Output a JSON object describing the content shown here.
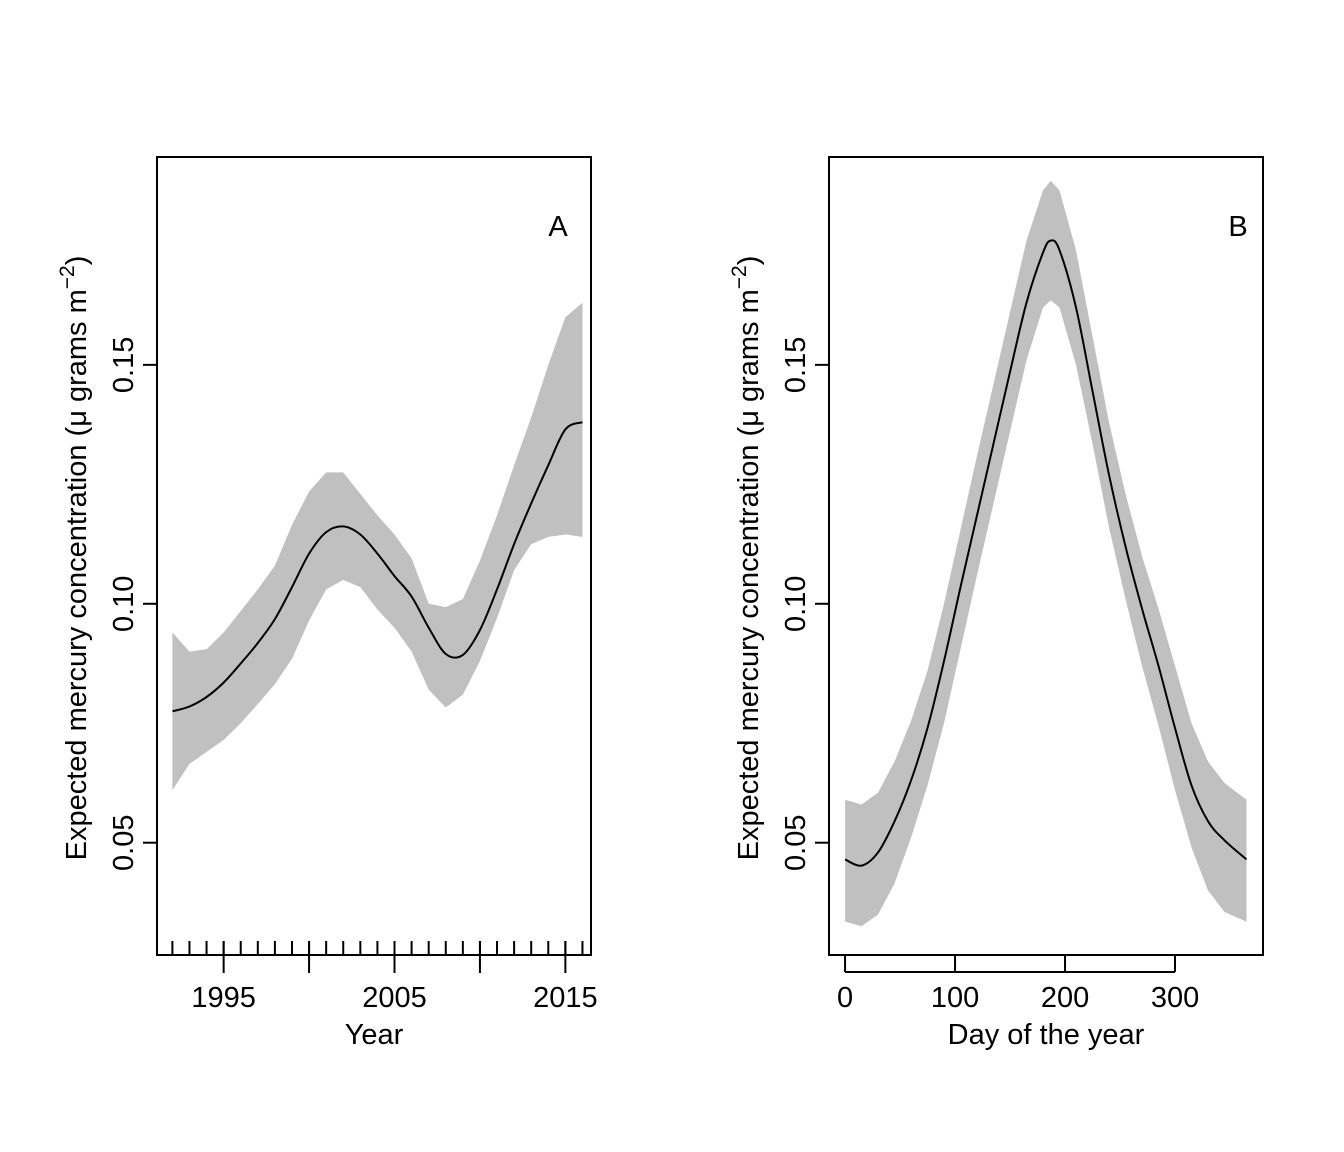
{
  "chart_data": [
    {
      "type": "line",
      "panel_label": "A",
      "xlabel": "Year",
      "ylabel": "Expected mercury concentration (μ grams m⁻²)",
      "ylabel_parts": {
        "before": "Expected mercury concentration (",
        "mu": "μ",
        "mid": " grams m",
        "sup": "−2",
        "after": ")"
      },
      "xlim": [
        1991.1,
        2016.5
      ],
      "ylim": [
        0.0265,
        0.1935
      ],
      "x_ticks": [
        1995,
        2005,
        2015
      ],
      "x_tick_labels": [
        "1995",
        "2005",
        "2015"
      ],
      "x_minor_ticks": [
        1992,
        1993,
        1994,
        1995,
        1996,
        1997,
        1998,
        1999,
        2000,
        2001,
        2002,
        2003,
        2004,
        2005,
        2006,
        2007,
        2008,
        2009,
        2010,
        2011,
        2012,
        2013,
        2014,
        2015,
        2016
      ],
      "x_major_ticks": [
        1995,
        2000,
        2005,
        2010,
        2015
      ],
      "y_ticks": [
        0.05,
        0.1,
        0.15
      ],
      "y_tick_labels": [
        "0.05",
        "0.10",
        "0.15"
      ],
      "band_color": "#c0c0c0",
      "line_color": "#000000",
      "series": [
        {
          "x": [
            1992,
            1993,
            1994,
            1995,
            1996,
            1997,
            1998,
            1999,
            2000,
            2001,
            2002,
            2003,
            2004,
            2005,
            2006,
            2007,
            2008,
            2009,
            2010,
            2011,
            2012,
            2013,
            2014,
            2015,
            2016
          ],
          "y": [
            0.0775,
            0.0785,
            0.0805,
            0.0835,
            0.0875,
            0.0918,
            0.0968,
            0.1035,
            0.1105,
            0.115,
            0.1162,
            0.1145,
            0.1105,
            0.1058,
            0.1015,
            0.095,
            0.0895,
            0.0893,
            0.0945,
            0.103,
            0.1125,
            0.121,
            0.129,
            0.1365,
            0.138
          ],
          "lower": [
            0.061,
            0.0665,
            0.069,
            0.0715,
            0.075,
            0.079,
            0.0832,
            0.0885,
            0.0965,
            0.103,
            0.105,
            0.1035,
            0.0988,
            0.095,
            0.09,
            0.082,
            0.0783,
            0.081,
            0.088,
            0.097,
            0.107,
            0.1125,
            0.114,
            0.1145,
            0.114
          ],
          "upper": [
            0.094,
            0.09,
            0.0905,
            0.094,
            0.0985,
            0.103,
            0.108,
            0.1165,
            0.1235,
            0.1275,
            0.1275,
            0.123,
            0.1185,
            0.1145,
            0.1095,
            0.1,
            0.0993,
            0.101,
            0.109,
            0.1185,
            0.129,
            0.139,
            0.15,
            0.16,
            0.163
          ]
        }
      ]
    },
    {
      "type": "line",
      "panel_label": "B",
      "xlabel": "Day of the year",
      "ylabel": "Expected mercury concentration (μ grams m⁻²)",
      "ylabel_parts": {
        "before": "Expected mercury concentration (",
        "mu": "μ",
        "mid": " grams m",
        "sup": "−2",
        "after": ")"
      },
      "xlim": [
        -14.6,
        380.0
      ],
      "ylim": [
        0.0265,
        0.1935
      ],
      "x_ticks": [
        0,
        100,
        200,
        300
      ],
      "x_tick_labels": [
        "0",
        "100",
        "200",
        "300"
      ],
      "y_ticks": [
        0.05,
        0.1,
        0.15
      ],
      "y_tick_labels": [
        "0.05",
        "0.10",
        "0.15"
      ],
      "band_color": "#c0c0c0",
      "line_color": "#000000",
      "series": [
        {
          "x": [
            0,
            15,
            30,
            45,
            60,
            75,
            90,
            105,
            120,
            135,
            150,
            165,
            180,
            187,
            195,
            210,
            225,
            240,
            255,
            270,
            285,
            300,
            315,
            330,
            345,
            365
          ],
          "y": [
            0.0465,
            0.0452,
            0.048,
            0.0545,
            0.063,
            0.074,
            0.088,
            0.1035,
            0.1185,
            0.1335,
            0.1485,
            0.163,
            0.1735,
            0.176,
            0.174,
            0.162,
            0.1445,
            0.127,
            0.112,
            0.099,
            0.087,
            0.074,
            0.062,
            0.0545,
            0.0505,
            0.0465
          ],
          "lower": [
            0.0335,
            0.0325,
            0.035,
            0.0415,
            0.051,
            0.062,
            0.075,
            0.0905,
            0.106,
            0.121,
            0.136,
            0.151,
            0.162,
            0.1635,
            0.162,
            0.15,
            0.1335,
            0.116,
            0.101,
            0.087,
            0.0745,
            0.061,
            0.049,
            0.04,
            0.0355,
            0.0335
          ],
          "upper": [
            0.059,
            0.058,
            0.0605,
            0.067,
            0.0755,
            0.086,
            0.1,
            0.1155,
            0.131,
            0.146,
            0.161,
            0.176,
            0.1865,
            0.1885,
            0.1865,
            0.174,
            0.156,
            0.138,
            0.123,
            0.11,
            0.099,
            0.087,
            0.075,
            0.067,
            0.0625,
            0.059
          ]
        }
      ]
    }
  ]
}
